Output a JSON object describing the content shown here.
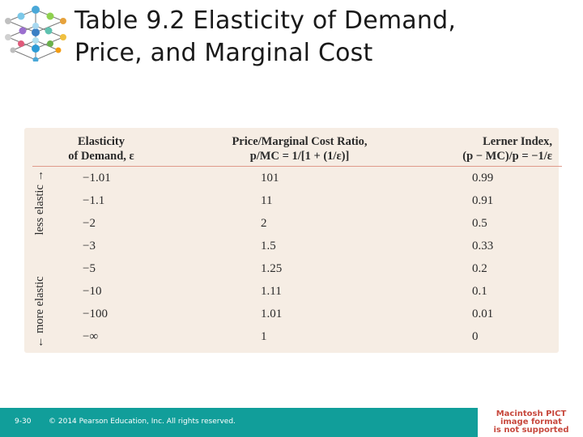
{
  "slide": {
    "title_line1": "Table 9.2  Elasticity of Demand,",
    "title_line2": "Price, and Marginal Cost"
  },
  "table": {
    "headers": {
      "col1_line1": "Elasticity",
      "col1_line2": "of Demand, ε",
      "col2_line1": "Price/Marginal Cost Ratio,",
      "col2_line2": "p/MC = 1/[1 + (1/ε)]",
      "col3_line1": "Lerner Index,",
      "col3_line2": "(p − MC)/p = −1/ε"
    },
    "side_label_more": "← more elastic",
    "side_label_less": "less elastic →",
    "rows": [
      {
        "elasticity": "−1.01",
        "ratio": "101",
        "lerner": "0.99"
      },
      {
        "elasticity": "−1.1",
        "ratio": "11",
        "lerner": "0.91"
      },
      {
        "elasticity": "−2",
        "ratio": "2",
        "lerner": "0.5"
      },
      {
        "elasticity": "−3",
        "ratio": "1.5",
        "lerner": "0.33"
      },
      {
        "elasticity": "−5",
        "ratio": "1.25",
        "lerner": "0.2"
      },
      {
        "elasticity": "−10",
        "ratio": "1.11",
        "lerner": "0.1"
      },
      {
        "elasticity": "−100",
        "ratio": "1.01",
        "lerner": "0.01"
      },
      {
        "elasticity": "−∞",
        "ratio": "1",
        "lerner": "0"
      }
    ]
  },
  "footer": {
    "page": "9-30",
    "copyright": "© 2014 Pearson Education, Inc. All rights reserved."
  },
  "placeholder": {
    "line1": "Macintosh PICT",
    "line2": "image format",
    "line3": "is not supported"
  },
  "colors": {
    "footer_bar": "#119e9a",
    "table_background": "#f6ede4",
    "header_rule": "#e09a8a",
    "placeholder_text": "#c7483d"
  },
  "icons": [
    "molecule-logo-icon"
  ]
}
